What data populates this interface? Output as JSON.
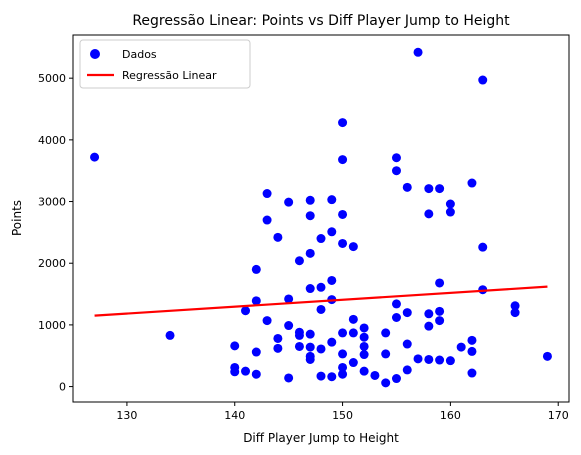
{
  "chart_data": {
    "type": "scatter",
    "title": "Regressão Linear: Points vs Diff Player Jump to Height",
    "xlabel": "Diff Player Jump to Height",
    "ylabel": "Points",
    "xlim": [
      125,
      171
    ],
    "ylim": [
      -250,
      5700
    ],
    "xticks": [
      130,
      140,
      150,
      160,
      170
    ],
    "yticks": [
      0,
      1000,
      2000,
      3000,
      4000,
      5000
    ],
    "grid": false,
    "legend_position": "top-left",
    "series": [
      {
        "name": "Dados",
        "kind": "scatter",
        "color": "#0000ff",
        "points": [
          [
            127,
            3720
          ],
          [
            134,
            830
          ],
          [
            140,
            660
          ],
          [
            140,
            310
          ],
          [
            140,
            240
          ],
          [
            141,
            1230
          ],
          [
            141,
            250
          ],
          [
            142,
            1900
          ],
          [
            142,
            1390
          ],
          [
            142,
            560
          ],
          [
            142,
            200
          ],
          [
            143,
            3130
          ],
          [
            143,
            2700
          ],
          [
            143,
            1070
          ],
          [
            144,
            2420
          ],
          [
            144,
            780
          ],
          [
            144,
            620
          ],
          [
            145,
            2990
          ],
          [
            145,
            1420
          ],
          [
            145,
            990
          ],
          [
            145,
            140
          ],
          [
            146,
            2040
          ],
          [
            146,
            880
          ],
          [
            146,
            830
          ],
          [
            146,
            650
          ],
          [
            147,
            3020
          ],
          [
            147,
            2770
          ],
          [
            147,
            2160
          ],
          [
            147,
            1590
          ],
          [
            147,
            850
          ],
          [
            147,
            640
          ],
          [
            147,
            490
          ],
          [
            147,
            440
          ],
          [
            148,
            2400
          ],
          [
            148,
            1610
          ],
          [
            148,
            1250
          ],
          [
            148,
            610
          ],
          [
            148,
            170
          ],
          [
            149,
            3030
          ],
          [
            149,
            2510
          ],
          [
            149,
            1720
          ],
          [
            149,
            1410
          ],
          [
            149,
            720
          ],
          [
            149,
            160
          ],
          [
            150,
            4280
          ],
          [
            150,
            3680
          ],
          [
            150,
            2790
          ],
          [
            150,
            2320
          ],
          [
            150,
            870
          ],
          [
            150,
            530
          ],
          [
            150,
            310
          ],
          [
            150,
            200
          ],
          [
            151,
            2270
          ],
          [
            151,
            1090
          ],
          [
            151,
            870
          ],
          [
            151,
            390
          ],
          [
            152,
            950
          ],
          [
            152,
            800
          ],
          [
            152,
            650
          ],
          [
            152,
            520
          ],
          [
            152,
            250
          ],
          [
            153,
            180
          ],
          [
            154,
            870
          ],
          [
            154,
            530
          ],
          [
            154,
            60
          ],
          [
            155,
            3710
          ],
          [
            155,
            3500
          ],
          [
            155,
            1340
          ],
          [
            155,
            1120
          ],
          [
            155,
            130
          ],
          [
            156,
            3230
          ],
          [
            156,
            1200
          ],
          [
            156,
            690
          ],
          [
            156,
            270
          ],
          [
            157,
            5420
          ],
          [
            157,
            450
          ],
          [
            158,
            3210
          ],
          [
            158,
            2800
          ],
          [
            158,
            1180
          ],
          [
            158,
            980
          ],
          [
            158,
            440
          ],
          [
            159,
            3210
          ],
          [
            159,
            1680
          ],
          [
            159,
            1220
          ],
          [
            159,
            1070
          ],
          [
            159,
            430
          ],
          [
            160,
            2960
          ],
          [
            160,
            2830
          ],
          [
            160,
            420
          ],
          [
            161,
            640
          ],
          [
            162,
            3300
          ],
          [
            162,
            750
          ],
          [
            162,
            570
          ],
          [
            162,
            220
          ],
          [
            163,
            4970
          ],
          [
            163,
            2260
          ],
          [
            163,
            1570
          ],
          [
            166,
            1310
          ],
          [
            166,
            1200
          ],
          [
            169,
            490
          ]
        ]
      },
      {
        "name": "Regressão Linear",
        "kind": "line",
        "color": "#ff0000",
        "points": [
          [
            127,
            1150
          ],
          [
            169,
            1620
          ]
        ]
      }
    ]
  }
}
